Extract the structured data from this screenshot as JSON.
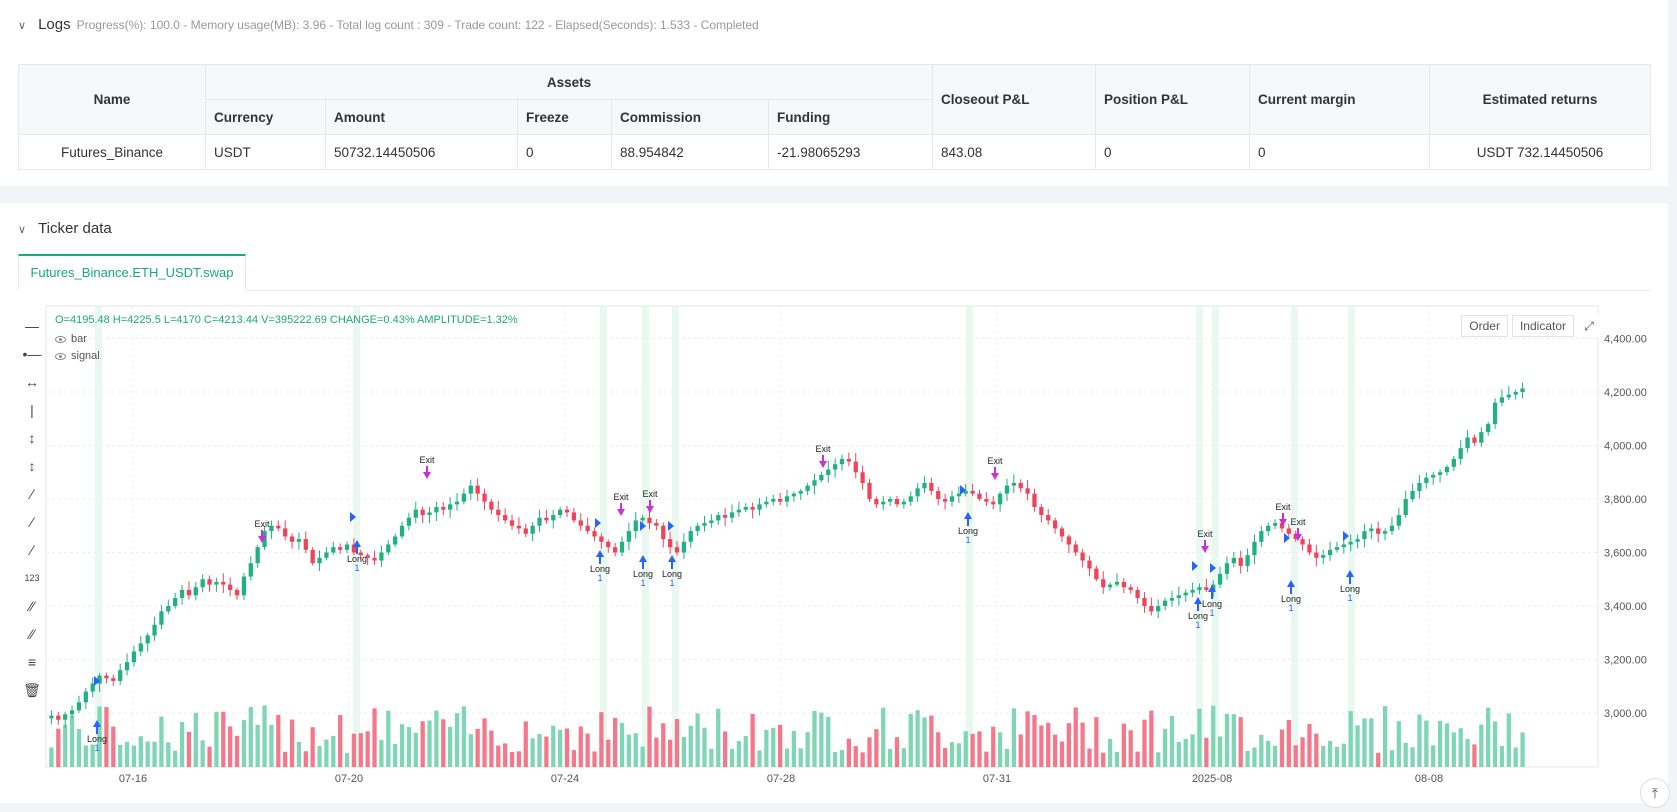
{
  "logs": {
    "title": "Logs",
    "status": "Progress(%): 100.0  - Memory usage(MB): 3.96 - Total log count : 309 - Trade count:  122 - Elapsed(Seconds): 1.533 - Completed"
  },
  "table": {
    "headers": {
      "name": "Name",
      "assets": "Assets",
      "currency": "Currency",
      "amount": "Amount",
      "freeze": "Freeze",
      "commission": "Commission",
      "funding": "Funding",
      "closeout": "Closeout P&L",
      "position": "Position P&L",
      "margin": "Current margin",
      "returns": "Estimated returns"
    },
    "row": {
      "name": "Futures_Binance",
      "currency": "USDT",
      "amount": "50732.14450506",
      "freeze": "0",
      "commission": "88.954842",
      "funding": "-21.98065293",
      "closeout": "843.08",
      "position": "0",
      "margin": "0",
      "returns": "USDT 732.14450506"
    }
  },
  "ticker": {
    "title": "Ticker data",
    "tab": "Futures_Binance.ETH_USDT.swap",
    "ohlc": "O=4195.48 H=4225.5 L=4170 C=4213.44 V=395222.69 CHANGE=0.43% AMPLITUDE=1.32%",
    "legend": [
      "bar",
      "signal"
    ],
    "buttons": {
      "order": "Order",
      "indicator": "Indicator"
    }
  },
  "colors": {
    "up": "#1fb27f",
    "down": "#f0435a",
    "up_vol": "#7fd6b4",
    "down_vol": "#f5788a",
    "long": "#2962ff",
    "exit": "#cc2ed8",
    "accent": "#1aaa7a"
  },
  "chart_data": {
    "type": "candlestick",
    "y_ticks": [
      "4,400.00",
      "4,200.00",
      "4,000.00",
      "3,800.00",
      "3,600.00",
      "3,400.00",
      "3,200.00",
      "3,000.00"
    ],
    "x_ticks": [
      "07-16",
      "07-20",
      "07-24",
      "07-28",
      "07-31",
      "2025-08",
      "08-08"
    ],
    "ylim": [
      2800,
      4500
    ],
    "closes": [
      2990,
      2975,
      2995,
      3010,
      3040,
      3080,
      3110,
      3140,
      3130,
      3120,
      3160,
      3190,
      3230,
      3260,
      3290,
      3330,
      3380,
      3400,
      3430,
      3460,
      3440,
      3470,
      3500,
      3480,
      3490,
      3480,
      3460,
      3440,
      3510,
      3560,
      3620,
      3680,
      3700,
      3690,
      3660,
      3640,
      3650,
      3610,
      3560,
      3580,
      3600,
      3620,
      3610,
      3630,
      3600,
      3590,
      3580,
      3570,
      3600,
      3630,
      3660,
      3700,
      3730,
      3760,
      3740,
      3750,
      3770,
      3760,
      3780,
      3790,
      3820,
      3850,
      3820,
      3790,
      3760,
      3740,
      3720,
      3700,
      3690,
      3670,
      3700,
      3730,
      3720,
      3740,
      3760,
      3750,
      3720,
      3700,
      3680,
      3660,
      3640,
      3620,
      3600,
      3640,
      3680,
      3720,
      3730,
      3710,
      3700,
      3650,
      3620,
      3600,
      3640,
      3680,
      3700,
      3710,
      3720,
      3740,
      3730,
      3750,
      3760,
      3770,
      3760,
      3780,
      3790,
      3800,
      3790,
      3810,
      3820,
      3830,
      3850,
      3870,
      3890,
      3910,
      3930,
      3950,
      3940,
      3900,
      3860,
      3800,
      3780,
      3790,
      3800,
      3780,
      3790,
      3810,
      3840,
      3860,
      3830,
      3800,
      3790,
      3810,
      3820,
      3830,
      3820,
      3800,
      3790,
      3780,
      3820,
      3850,
      3860,
      3840,
      3820,
      3770,
      3740,
      3720,
      3690,
      3660,
      3630,
      3600,
      3570,
      3540,
      3500,
      3470,
      3480,
      3490,
      3470,
      3460,
      3430,
      3400,
      3380,
      3400,
      3420,
      3430,
      3440,
      3450,
      3460,
      3470,
      3460,
      3480,
      3520,
      3560,
      3580,
      3550,
      3590,
      3640,
      3680,
      3700,
      3710,
      3690,
      3670,
      3650,
      3630,
      3600,
      3580,
      3590,
      3610,
      3620,
      3630,
      3640,
      3650,
      3680,
      3690,
      3670,
      3680,
      3700,
      3740,
      3800,
      3830,
      3860,
      3880,
      3890,
      3900,
      3920,
      3950,
      3990,
      4030,
      4010,
      4050,
      4080,
      4160,
      4180,
      4190,
      4200,
      4213
    ],
    "signals": [
      "Long",
      "Exit",
      "Long 1",
      "Exit",
      "Long 1"
    ]
  }
}
